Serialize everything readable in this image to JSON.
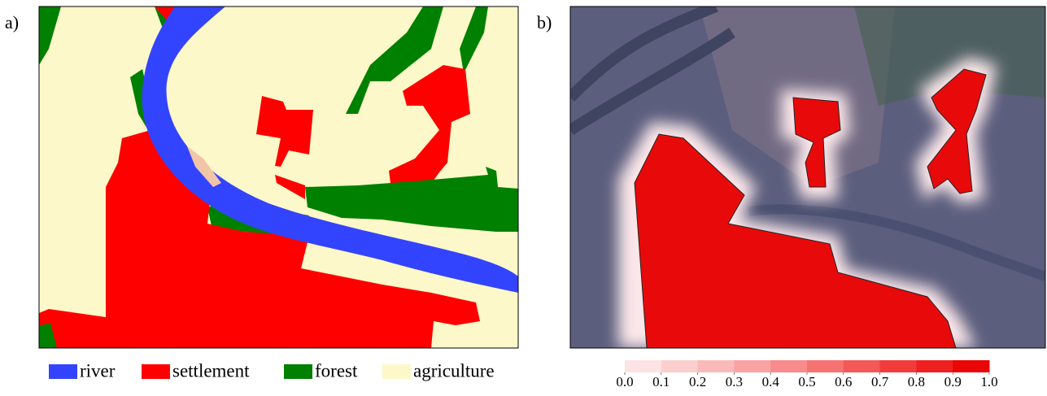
{
  "panel_a": {
    "label": "a)",
    "legend": [
      {
        "name": "river",
        "color": "#3344ff"
      },
      {
        "name": "settlement",
        "color": "#ff0000"
      },
      {
        "name": "forest",
        "color": "#008000"
      },
      {
        "name": "agriculture",
        "color": "#fdf8c9"
      }
    ]
  },
  "panel_b": {
    "label": "b)",
    "colorbar": {
      "ticks": [
        {
          "value": 0,
          "label": "0.0"
        },
        {
          "value": 0.1,
          "label": "0.1"
        },
        {
          "value": 0.2,
          "label": "0.2"
        },
        {
          "value": 0.3,
          "label": "0.3"
        },
        {
          "value": 0.4,
          "label": "0.4"
        },
        {
          "value": 0.5,
          "label": "0.5"
        },
        {
          "value": 0.6,
          "label": "0.6"
        },
        {
          "value": 0.7,
          "label": "0.7"
        },
        {
          "value": 0.8,
          "label": "0.8"
        },
        {
          "value": 0.9,
          "label": "0.9"
        },
        {
          "value": 1,
          "label": "1.0"
        }
      ],
      "colors": [
        "#fde3e3",
        "#fccfcf",
        "#fbbaba",
        "#f9a3a3",
        "#f88b8b",
        "#f67272",
        "#f45858",
        "#f23c3c",
        "#ef2020",
        "#ea0606"
      ]
    }
  }
}
